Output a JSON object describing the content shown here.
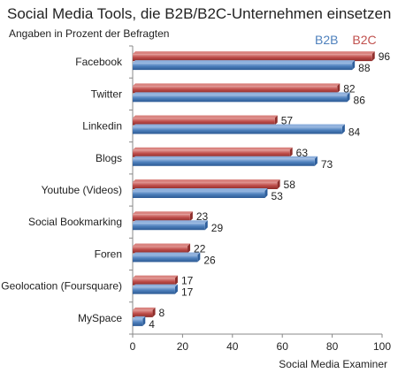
{
  "chart_data": {
    "type": "bar",
    "orientation": "horizontal",
    "title": "Social Media Tools, die B2B/B2C-Unternehmen einsetzen",
    "subtitle": "Angaben in Prozent der Befragten",
    "source": "Social Media Examiner",
    "categories": [
      "Facebook",
      "Twitter",
      "Linkedin",
      "Blogs",
      "Youtube (Videos)",
      "Social Bookmarking",
      "Foren",
      "Geolocation (Foursquare)",
      "MySpace"
    ],
    "series": [
      {
        "name": "B2B",
        "values": [
          88,
          86,
          84,
          73,
          53,
          29,
          26,
          17,
          4
        ],
        "color": "#4f81bd"
      },
      {
        "name": "B2C",
        "values": [
          96,
          82,
          57,
          63,
          58,
          23,
          22,
          17,
          8
        ],
        "color": "#c0504d"
      }
    ],
    "xlim": [
      0,
      100
    ],
    "xticks": [
      0,
      20,
      40,
      60,
      80,
      100
    ],
    "grid": false,
    "legend_position": "top-right"
  }
}
